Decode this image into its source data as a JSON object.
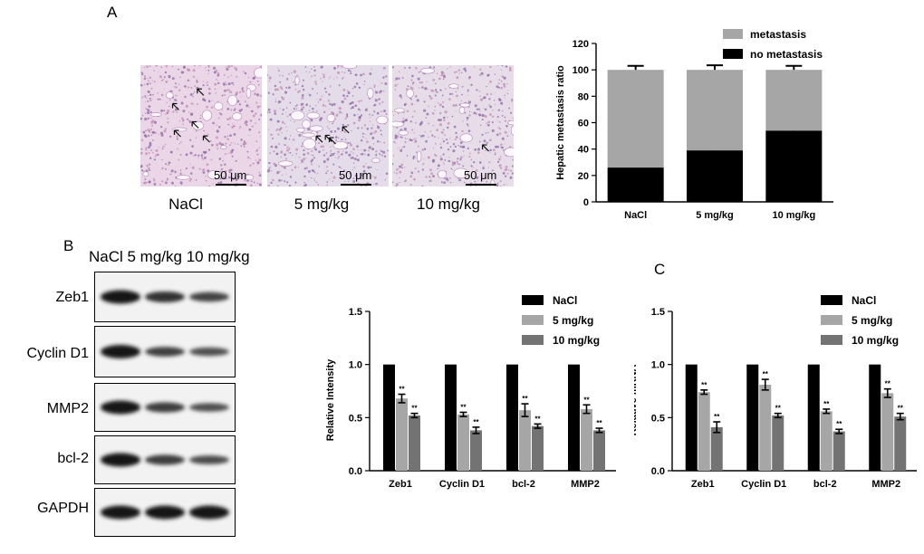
{
  "panels": {
    "a": "A",
    "b": "B",
    "c": "C"
  },
  "histology": {
    "conditions": [
      "NaCl",
      "5 mg/kg",
      "10 mg/kg"
    ],
    "scale_bar": "50 μm"
  },
  "blot": {
    "lane_header": "NaCl 5 mg/kg 10 mg/kg",
    "proteins": [
      {
        "name": "Zeb1",
        "bands": [
          1.0,
          0.68,
          0.52
        ]
      },
      {
        "name": "Cyclin D1",
        "bands": [
          1.0,
          0.53,
          0.38
        ]
      },
      {
        "name": "MMP2",
        "bands": [
          1.0,
          0.58,
          0.38
        ]
      },
      {
        "name": "bcl-2",
        "bands": [
          1.0,
          0.57,
          0.42
        ]
      },
      {
        "name": "GAPDH",
        "bands": [
          1.0,
          1.0,
          1.0
        ]
      }
    ]
  },
  "chart_data": [
    {
      "type": "bar",
      "stacked": true,
      "categories": [
        "NaCl",
        "5 mg/kg",
        "10 mg/kg"
      ],
      "series": [
        {
          "name": "no metastasis",
          "values": [
            26,
            39,
            54
          ],
          "errors": [
            3,
            3.5,
            3.5
          ],
          "color": "#000000"
        },
        {
          "name": "metastasis",
          "values": [
            74,
            61,
            46
          ],
          "errors": [
            3,
            3.5,
            3
          ],
          "color": "#a6a6a6"
        }
      ],
      "xlabel": "",
      "ylabel": "Hepatic metastasis ratio",
      "ylim": [
        0,
        120
      ],
      "yticks": [
        0,
        20,
        40,
        60,
        80,
        100,
        120
      ],
      "legend": "top-right",
      "grid": false
    },
    {
      "type": "bar",
      "categories": [
        "Zeb1",
        "Cyclin D1",
        "bcl-2",
        "MMP2"
      ],
      "series": [
        {
          "name": "NaCl",
          "values": [
            1.0,
            1.0,
            1.0,
            1.0
          ],
          "errors": [
            0,
            0,
            0,
            0
          ],
          "color": "#000000"
        },
        {
          "name": "5 mg/kg",
          "values": [
            0.68,
            0.53,
            0.57,
            0.58
          ],
          "errors": [
            0.04,
            0.02,
            0.06,
            0.04
          ],
          "color": "#a6a6a6"
        },
        {
          "name": "10 mg/kg",
          "values": [
            0.52,
            0.38,
            0.42,
            0.38
          ],
          "errors": [
            0.02,
            0.03,
            0.02,
            0.02
          ],
          "color": "#737373"
        }
      ],
      "significance": "**",
      "xlabel": "",
      "ylabel": "Relative Intensity",
      "ylim": [
        0,
        1.5
      ],
      "yticks": [
        0.0,
        0.5,
        1.0,
        1.5
      ],
      "legend": "top-right",
      "grid": false
    },
    {
      "type": "bar",
      "categories": [
        "Zeb1",
        "Cyclin D1",
        "bcl-2",
        "MMP2"
      ],
      "series": [
        {
          "name": "NaCl",
          "values": [
            1.0,
            1.0,
            1.0,
            1.0
          ],
          "errors": [
            0,
            0,
            0,
            0
          ],
          "color": "#000000"
        },
        {
          "name": "5 mg/kg",
          "values": [
            0.74,
            0.81,
            0.56,
            0.73
          ],
          "errors": [
            0.02,
            0.05,
            0.02,
            0.04
          ],
          "color": "#a6a6a6"
        },
        {
          "name": "10 mg/kg",
          "values": [
            0.41,
            0.52,
            0.37,
            0.51
          ],
          "errors": [
            0.05,
            0.02,
            0.02,
            0.03
          ],
          "color": "#737373"
        }
      ],
      "significance": "**",
      "xlabel": "",
      "ylabel": "Relative mRNA",
      "ylim": [
        0,
        1.5
      ],
      "yticks": [
        0.0,
        0.5,
        1.0,
        1.5
      ],
      "legend": "top-right",
      "grid": false
    }
  ]
}
